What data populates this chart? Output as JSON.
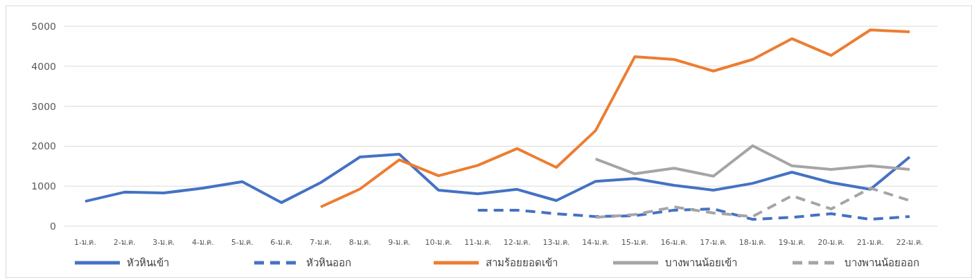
{
  "chart_data": {
    "type": "line",
    "categories": [
      "1-ม.ค.",
      "2-ม.ค.",
      "3-ม.ค.",
      "4-ม.ค.",
      "5-ม.ค.",
      "6-ม.ค.",
      "7-ม.ค.",
      "8-ม.ค.",
      "9-ม.ค.",
      "10-ม.ค.",
      "11-ม.ค.",
      "12-ม.ค.",
      "13-ม.ค.",
      "14-ม.ค.",
      "15-ม.ค.",
      "16-ม.ค.",
      "17-ม.ค.",
      "18-ม.ค.",
      "19-ม.ค.",
      "20-ม.ค.",
      "21-ม.ค.",
      "22-ม.ค."
    ],
    "series": [
      {
        "name": "หัวหินเข้า",
        "color": "#4472c4",
        "line_style": "solid",
        "values": [
          620,
          850,
          830,
          950,
          1110,
          590,
          1090,
          1730,
          1800,
          900,
          810,
          920,
          640,
          1120,
          1190,
          1020,
          900,
          1070,
          1350,
          1090,
          920,
          1730
        ]
      },
      {
        "name": "หัวหินออก",
        "color": "#4472c4",
        "line_style": "dashed",
        "values": [
          null,
          null,
          null,
          null,
          null,
          null,
          null,
          null,
          null,
          null,
          400,
          400,
          310,
          240,
          260,
          400,
          430,
          170,
          220,
          310,
          170,
          240
        ]
      },
      {
        "name": "สามร้อยยอดเข้า",
        "color": "#ed7d31",
        "line_style": "solid",
        "values": [
          null,
          null,
          null,
          null,
          null,
          null,
          480,
          930,
          1660,
          1260,
          1520,
          1940,
          1470,
          2390,
          4240,
          4170,
          3880,
          4170,
          4690,
          4270,
          4910,
          4860
        ]
      },
      {
        "name": "บางพานน้อยเข้า",
        "color": "#a5a5a5",
        "line_style": "solid",
        "values": [
          null,
          null,
          null,
          null,
          null,
          null,
          null,
          null,
          null,
          null,
          null,
          null,
          null,
          1680,
          1310,
          1450,
          1250,
          2010,
          1510,
          1420,
          1510,
          1420
        ]
      },
      {
        "name": "บางพานน้อยออก",
        "color": "#a5a5a5",
        "line_style": "dashed",
        "values": [
          null,
          null,
          null,
          null,
          null,
          null,
          null,
          null,
          null,
          null,
          null,
          null,
          null,
          220,
          290,
          480,
          330,
          240,
          760,
          430,
          950,
          640
        ]
      }
    ],
    "ylim": [
      0,
      5000
    ],
    "yticks": [
      0,
      1000,
      2000,
      3000,
      4000,
      5000
    ],
    "grid": "y",
    "legend": "bottom",
    "marker": "none"
  }
}
